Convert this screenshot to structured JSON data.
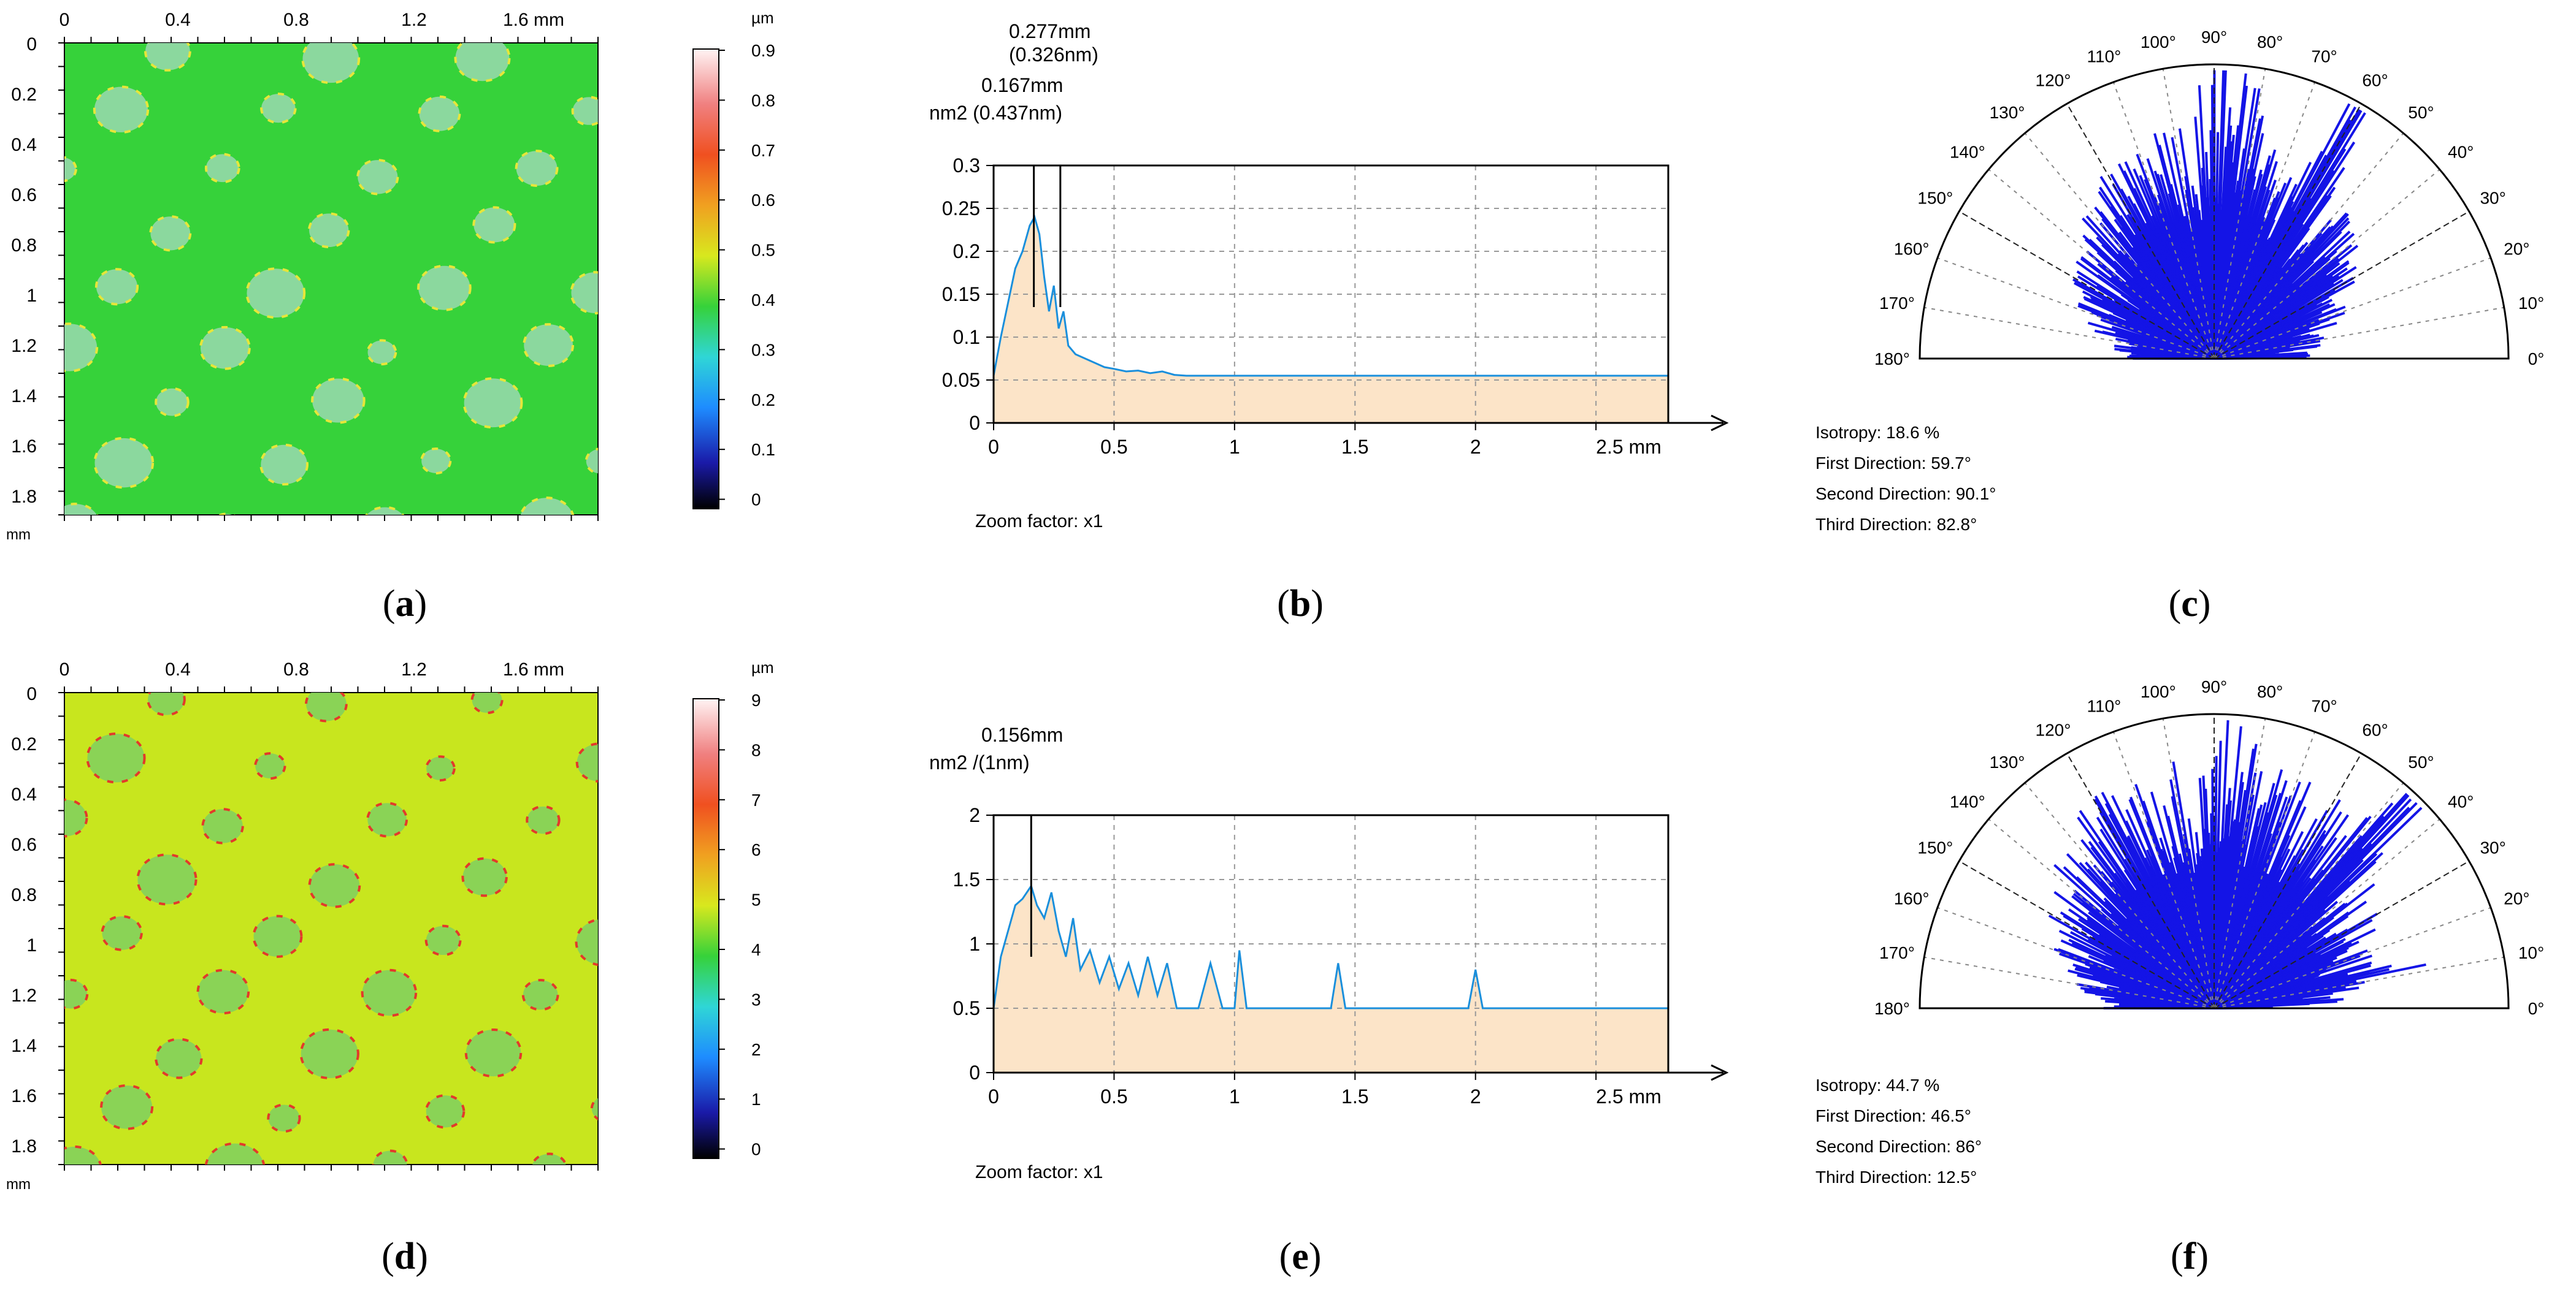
{
  "figure": {
    "panels": [
      {
        "id": "a",
        "caption": "a",
        "kind": "height-map",
        "x_ticks": [
          "0",
          "0.4",
          "0.8",
          "1.2",
          "1.6 mm"
        ],
        "y_ticks": [
          "0",
          "0.2",
          "0.4",
          "0.6",
          "0.8",
          "1",
          "1.2",
          "1.4",
          "1.6",
          "1.8"
        ],
        "axis_unit": "mm",
        "colorbar_unit": "µm",
        "colorbar_ticks": [
          "0.9",
          "0.8",
          "0.7",
          "0.6",
          "0.5",
          "0.4",
          "0.3",
          "0.2",
          "0.1",
          "0"
        ],
        "colorbar_range": [
          0,
          0.95
        ],
        "background_color": "#36d23a",
        "feature_color": "#9ad9b0",
        "edge_color": "#e6e63a"
      },
      {
        "id": "b",
        "caption": "b",
        "kind": "spectrum",
        "peak_labels": [
          "0.277mm",
          "(0.326nm)",
          "0.167mm"
        ],
        "y_unit_label": "nm2 (0.437nm)",
        "zoom_label": "Zoom factor: x1"
      },
      {
        "id": "c",
        "caption": "c",
        "kind": "polar",
        "stats": [
          "Isotropy: 18.6 %",
          "First Direction: 59.7°",
          "Second Direction: 90.1°",
          "Third Direction: 82.8°"
        ]
      },
      {
        "id": "d",
        "caption": "d",
        "kind": "height-map",
        "x_ticks": [
          "0",
          "0.4",
          "0.8",
          "1.2",
          "1.6 mm"
        ],
        "y_ticks": [
          "0",
          "0.2",
          "0.4",
          "0.6",
          "0.8",
          "1",
          "1.2",
          "1.4",
          "1.6",
          "1.8"
        ],
        "axis_unit": "mm",
        "colorbar_unit": "µm",
        "colorbar_ticks": [
          "9",
          "8",
          "7",
          "6",
          "5",
          "4",
          "3",
          "2",
          "1",
          "0"
        ],
        "colorbar_range": [
          0,
          9
        ],
        "background_color": "#c8e61e",
        "feature_color": "#7fcf60",
        "edge_color": "#e23a2a"
      },
      {
        "id": "e",
        "caption": "e",
        "kind": "spectrum",
        "peak_labels": [
          "0.156mm"
        ],
        "y_unit_label": "nm2 /(1nm)",
        "zoom_label": "Zoom factor: x1"
      },
      {
        "id": "f",
        "caption": "f",
        "kind": "polar",
        "stats": [
          "Isotropy: 44.7 %",
          "First Direction: 46.5°",
          "Second Direction: 86°",
          "Third Direction: 12.5°"
        ]
      }
    ]
  },
  "chart_data": [
    {
      "panel": "b",
      "type": "area",
      "title": "",
      "xlabel": "mm",
      "ylabel": "nm2",
      "xlim": [
        0,
        2.8
      ],
      "ylim": [
        0,
        0.3
      ],
      "x_ticks": [
        0,
        0.5,
        1,
        1.5,
        2,
        2.5
      ],
      "x_tick_labels": [
        "0",
        "0.5",
        "1",
        "1.5",
        "2",
        "2.5 mm"
      ],
      "y_ticks": [
        0,
        0.05,
        0.1,
        0.15,
        0.2,
        0.25,
        0.3
      ],
      "y_tick_labels": [
        "0",
        "0.05",
        "0.1",
        "0.15",
        "0.2",
        "0.25",
        "0.3"
      ],
      "baseline": 0.055,
      "peak_markers": [
        0.167,
        0.277
      ],
      "x": [
        0,
        0.03,
        0.06,
        0.09,
        0.12,
        0.15,
        0.17,
        0.19,
        0.21,
        0.23,
        0.25,
        0.27,
        0.29,
        0.31,
        0.34,
        0.38,
        0.42,
        0.46,
        0.5,
        0.55,
        0.6,
        0.65,
        0.7,
        0.75,
        0.8,
        1.0,
        1.5,
        2.0,
        2.5,
        2.8
      ],
      "y": [
        0.055,
        0.1,
        0.14,
        0.18,
        0.2,
        0.23,
        0.24,
        0.22,
        0.17,
        0.13,
        0.16,
        0.11,
        0.13,
        0.09,
        0.08,
        0.075,
        0.07,
        0.065,
        0.063,
        0.06,
        0.061,
        0.058,
        0.06,
        0.056,
        0.055,
        0.055,
        0.055,
        0.055,
        0.055,
        0.055
      ],
      "line_color": "#1a8fdc",
      "fill_color": "#fce4c8"
    },
    {
      "panel": "e",
      "type": "area",
      "title": "",
      "xlabel": "mm",
      "ylabel": "nm2",
      "xlim": [
        0,
        2.8
      ],
      "ylim": [
        0,
        2
      ],
      "x_ticks": [
        0,
        0.5,
        1,
        1.5,
        2,
        2.5
      ],
      "x_tick_labels": [
        "0",
        "0.5",
        "1",
        "1.5",
        "2",
        "2.5 mm"
      ],
      "y_ticks": [
        0,
        0.5,
        1,
        1.5,
        2
      ],
      "y_tick_labels": [
        "0",
        "0.5",
        "1",
        "1.5",
        "2"
      ],
      "baseline": 0.5,
      "peak_markers": [
        0.156
      ],
      "x": [
        0,
        0.03,
        0.06,
        0.09,
        0.12,
        0.156,
        0.18,
        0.21,
        0.24,
        0.27,
        0.3,
        0.33,
        0.36,
        0.4,
        0.44,
        0.48,
        0.52,
        0.56,
        0.6,
        0.64,
        0.68,
        0.72,
        0.76,
        0.85,
        0.9,
        0.95,
        1.0,
        1.02,
        1.05,
        1.4,
        1.43,
        1.46,
        1.97,
        2.0,
        2.03,
        2.5,
        2.8
      ],
      "y": [
        0.5,
        0.9,
        1.1,
        1.3,
        1.35,
        1.45,
        1.3,
        1.2,
        1.4,
        1.1,
        0.9,
        1.2,
        0.8,
        0.95,
        0.7,
        0.9,
        0.65,
        0.85,
        0.6,
        0.9,
        0.6,
        0.85,
        0.5,
        0.5,
        0.85,
        0.5,
        0.5,
        0.95,
        0.5,
        0.5,
        0.85,
        0.5,
        0.5,
        0.8,
        0.5,
        0.5,
        0.5
      ],
      "line_color": "#1a8fdc",
      "fill_color": "#fce4c8"
    },
    {
      "panel": "c",
      "type": "polar",
      "title": "",
      "theta_range_deg": [
        0,
        180
      ],
      "angle_ticks_deg": [
        0,
        10,
        20,
        30,
        40,
        50,
        60,
        70,
        80,
        90,
        100,
        110,
        120,
        130,
        140,
        150,
        160,
        170,
        180
      ],
      "angle_tick_labels": [
        "0°",
        "10°",
        "20°",
        "30°",
        "40°",
        "50°",
        "60°",
        "70°",
        "80°",
        "90°",
        "100°",
        "110°",
        "120°",
        "130°",
        "140°",
        "150°",
        "160°",
        "170°",
        "180°"
      ],
      "directions_deg": [
        59.7,
        90.1,
        82.8
      ],
      "isotropy_percent": 18.6,
      "fill_color": "#1414e6"
    },
    {
      "panel": "f",
      "type": "polar",
      "title": "",
      "theta_range_deg": [
        0,
        180
      ],
      "angle_ticks_deg": [
        0,
        10,
        20,
        30,
        40,
        50,
        60,
        70,
        80,
        90,
        100,
        110,
        120,
        130,
        140,
        150,
        160,
        170,
        180
      ],
      "angle_tick_labels": [
        "0°",
        "10°",
        "20°",
        "30°",
        "40°",
        "50°",
        "60°",
        "70°",
        "80°",
        "90°",
        "100°",
        "110°",
        "120°",
        "130°",
        "140°",
        "150°",
        "160°",
        "170°",
        "180°"
      ],
      "directions_deg": [
        46.5,
        86,
        12.5
      ],
      "isotropy_percent": 44.7,
      "fill_color": "#1414e6"
    }
  ]
}
